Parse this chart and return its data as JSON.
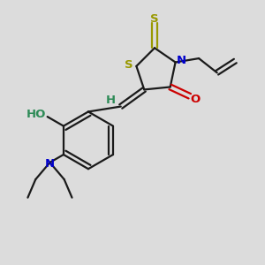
{
  "bg_color": "#dcdcdc",
  "bond_color": "#1a1a1a",
  "S_color": "#999900",
  "N_color": "#0000cc",
  "O_color": "#cc0000",
  "HO_color": "#2e8b57",
  "figsize": [
    3.0,
    3.0
  ],
  "dpi": 100,
  "xlim": [
    0,
    10
  ],
  "ylim": [
    0,
    10
  ]
}
